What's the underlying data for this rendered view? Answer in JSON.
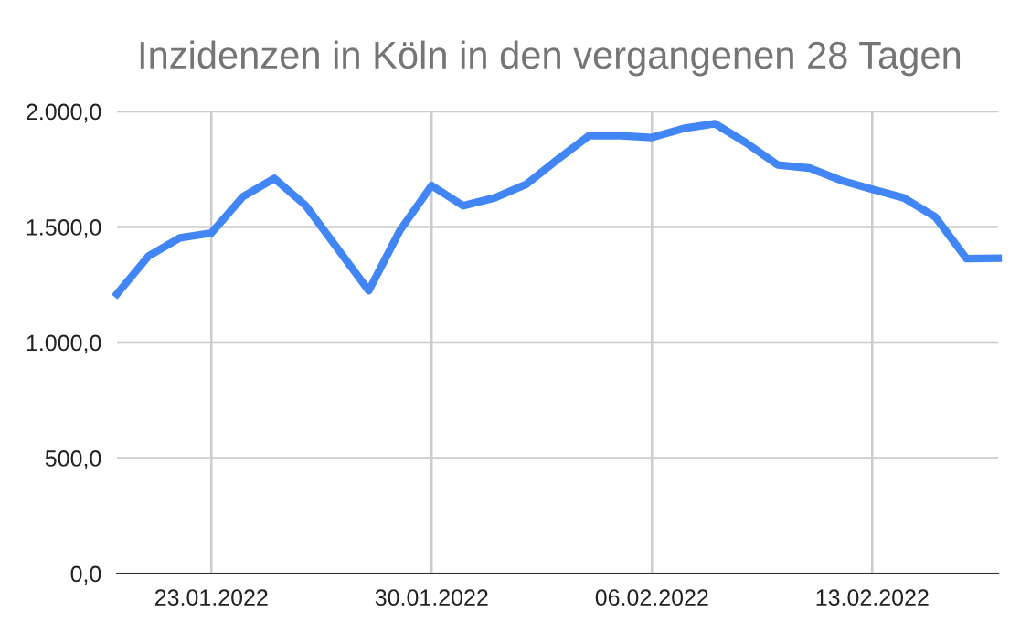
{
  "chart_data": {
    "type": "line",
    "title": "Inzidenzen in Köln in den vergangenen 28 Tagen",
    "x": [
      "2022-01-20",
      "2022-01-21",
      "2022-01-22",
      "2022-01-23",
      "2022-01-24",
      "2022-01-25",
      "2022-01-26",
      "2022-01-27",
      "2022-01-28",
      "2022-01-29",
      "2022-01-30",
      "2022-01-31",
      "2022-02-01",
      "2022-02-02",
      "2022-02-03",
      "2022-02-04",
      "2022-02-05",
      "2022-02-06",
      "2022-02-07",
      "2022-02-08",
      "2022-02-09",
      "2022-02-10",
      "2022-02-11",
      "2022-02-12",
      "2022-02-13",
      "2022-02-14",
      "2022-02-15",
      "2022-02-16",
      "2022-02-17"
    ],
    "series": [
      {
        "color": "#4285f4",
        "values": [
          1210,
          1374,
          1453,
          1474,
          1631,
          1710,
          1592,
          1408,
          1224,
          1487,
          1679,
          1592,
          1626,
          1684,
          1792,
          1895,
          1895,
          1887,
          1926,
          1947,
          1863,
          1768,
          1755,
          1702,
          1663,
          1626,
          1544,
          1363,
          1365
        ]
      }
    ],
    "xlim": [
      "2022-01-20",
      "2022-02-17"
    ],
    "xticks": [
      {
        "value": "2022-01-23",
        "label": "23.01.2022"
      },
      {
        "value": "2022-01-30",
        "label": "30.01.2022"
      },
      {
        "value": "2022-02-06",
        "label": "06.02.2022"
      },
      {
        "value": "2022-02-13",
        "label": "13.02.2022"
      }
    ],
    "ylim": [
      0,
      2000
    ],
    "yticks": [
      {
        "value": 0,
        "label": "0,0"
      },
      {
        "value": 500,
        "label": "500,0"
      },
      {
        "value": 1000,
        "label": "1.000,0"
      },
      {
        "value": 1500,
        "label": "1.500,0"
      },
      {
        "value": 2000,
        "label": "2.000,0"
      }
    ],
    "grid": true,
    "marker": "none",
    "line_style": "solid"
  }
}
